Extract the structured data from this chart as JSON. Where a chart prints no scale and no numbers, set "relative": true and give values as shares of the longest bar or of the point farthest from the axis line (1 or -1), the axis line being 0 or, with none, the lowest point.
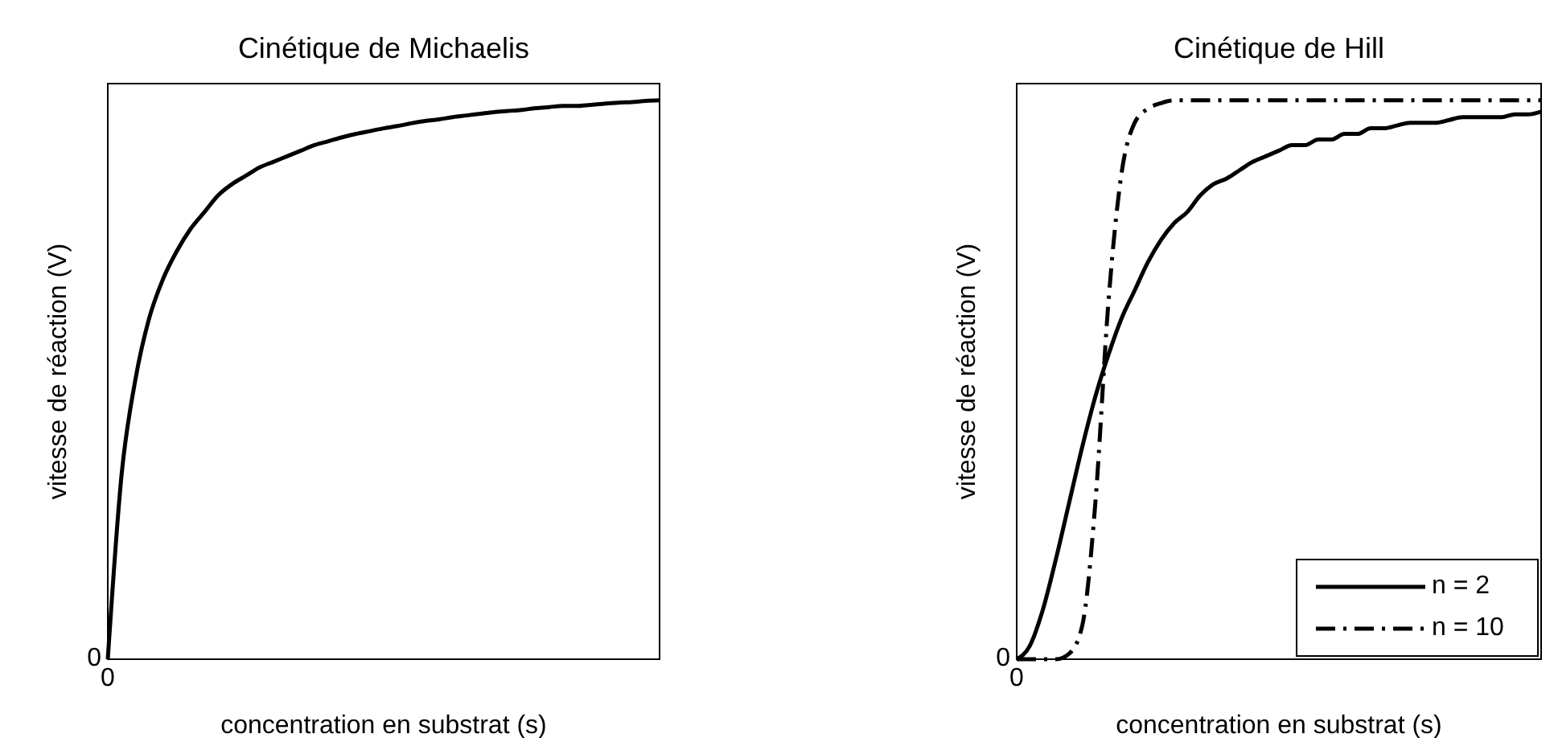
{
  "chart_data": [
    {
      "type": "line",
      "title": "Cinétique de Michaelis",
      "xlabel": "concentration en substrat (s)",
      "ylabel": "vitesse de réaction (V)",
      "relative": true,
      "marker": "none",
      "line_style": "solid",
      "annotations": [
        "0",
        "0"
      ],
      "categories": [
        null,
        null,
        null,
        null,
        null,
        null,
        null,
        null,
        null,
        null,
        null,
        null,
        null,
        null,
        null,
        null,
        null,
        null,
        null,
        null,
        null,
        null,
        null,
        null,
        null,
        null,
        null,
        null,
        null,
        null,
        null,
        null,
        null,
        null,
        null,
        null,
        null,
        null,
        null,
        null,
        null
      ],
      "series": [
        {
          "color": "#000000",
          "values": [
            0,
            0.33,
            0.5,
            0.61,
            0.68,
            0.73,
            0.77,
            0.8,
            0.83,
            0.85,
            0.865,
            0.88,
            0.89,
            0.9,
            0.91,
            0.92,
            0.927,
            0.934,
            0.94,
            0.945,
            0.95,
            0.954,
            0.959,
            0.963,
            0.966,
            0.97,
            0.973,
            0.976,
            0.979,
            0.981,
            0.983,
            0.986,
            0.988,
            0.99,
            0.99,
            0.992,
            0.994,
            0.996,
            0.997,
            0.999,
            1
          ]
        }
      ]
    },
    {
      "type": "line",
      "title": "Cinétique de Hill",
      "xlabel": "concentration en substrat (s)",
      "ylabel": "vitesse de réaction (V)",
      "relative": true,
      "legend": "bottom right",
      "marker": "none",
      "annotations": [
        "0",
        "0"
      ],
      "categories": [
        null,
        null,
        null,
        null,
        null,
        null,
        null,
        null,
        null,
        null,
        null,
        null,
        null,
        null,
        null,
        null,
        null,
        null,
        null,
        null,
        null,
        null,
        null,
        null,
        null,
        null,
        null,
        null,
        null,
        null,
        null,
        null,
        null,
        null,
        null,
        null,
        null,
        null,
        null,
        null,
        null
      ],
      "series": [
        {
          "name": "n = 2",
          "color": "#000000",
          "line_style": "solid",
          "values": [
            0,
            0.024,
            0.089,
            0.18,
            0.28,
            0.38,
            0.47,
            0.545,
            0.61,
            0.66,
            0.71,
            0.75,
            0.78,
            0.8,
            0.83,
            0.85,
            0.86,
            0.875,
            0.89,
            0.9,
            0.91,
            0.92,
            0.92,
            0.93,
            0.93,
            0.94,
            0.94,
            0.95,
            0.95,
            0.955,
            0.96,
            0.96,
            0.96,
            0.965,
            0.97,
            0.97,
            0.97,
            0.97,
            0.975,
            0.975,
            0.98
          ]
        },
        {
          "name": "n = 10",
          "color": "#000000",
          "line_style": "dashed",
          "values": [
            0,
            0,
            0,
            0,
            0.01,
            0.06,
            0.28,
            0.64,
            0.87,
            0.96,
            0.985,
            0.995,
            1,
            1,
            1,
            1,
            1,
            1,
            1,
            1,
            1,
            1,
            1,
            1,
            1,
            1,
            1,
            1,
            1,
            1,
            1,
            1,
            1,
            1,
            1,
            1,
            1,
            1,
            1,
            1,
            1
          ]
        }
      ]
    }
  ]
}
